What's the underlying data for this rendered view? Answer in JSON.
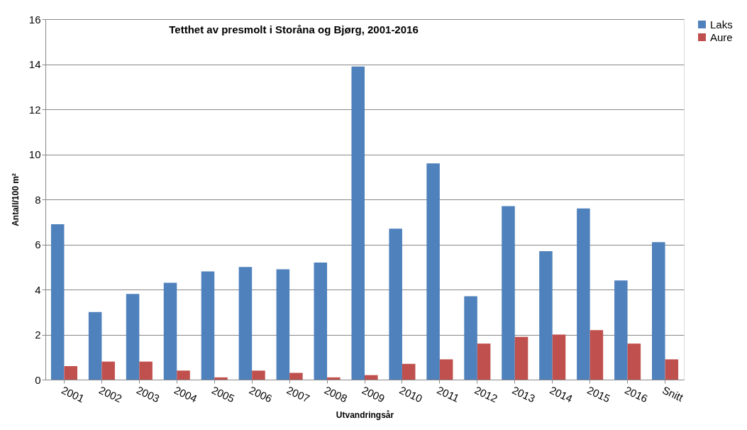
{
  "chart_data": {
    "type": "bar",
    "title": "Tetthet av presmolt i Storåna og Bjørg, 2001-2016",
    "xlabel": "Utvandringsår",
    "ylabel": "Antall/100 m²",
    "categories": [
      "2001",
      "2002",
      "2003",
      "2004",
      "2005",
      "2006",
      "2007",
      "2008",
      "2009",
      "2010",
      "2011",
      "2012",
      "2013",
      "2014",
      "2015",
      "2016",
      "Snitt"
    ],
    "series": [
      {
        "name": "Laks",
        "color": "#4f81bd",
        "values": [
          6.9,
          3.0,
          3.8,
          4.3,
          4.8,
          5.0,
          4.9,
          5.2,
          13.9,
          6.7,
          9.6,
          3.7,
          7.7,
          5.7,
          7.6,
          4.4,
          6.1
        ]
      },
      {
        "name": "Aure",
        "color": "#c0504d",
        "values": [
          0.6,
          0.8,
          0.8,
          0.4,
          0.1,
          0.4,
          0.3,
          0.1,
          0.2,
          0.7,
          0.9,
          1.6,
          1.9,
          2.0,
          2.2,
          1.6,
          0.9
        ]
      }
    ],
    "ylim": [
      0,
      16
    ],
    "yticks": [
      0,
      2,
      4,
      6,
      8,
      10,
      12,
      14,
      16
    ],
    "grid": "y",
    "legend": "right"
  }
}
